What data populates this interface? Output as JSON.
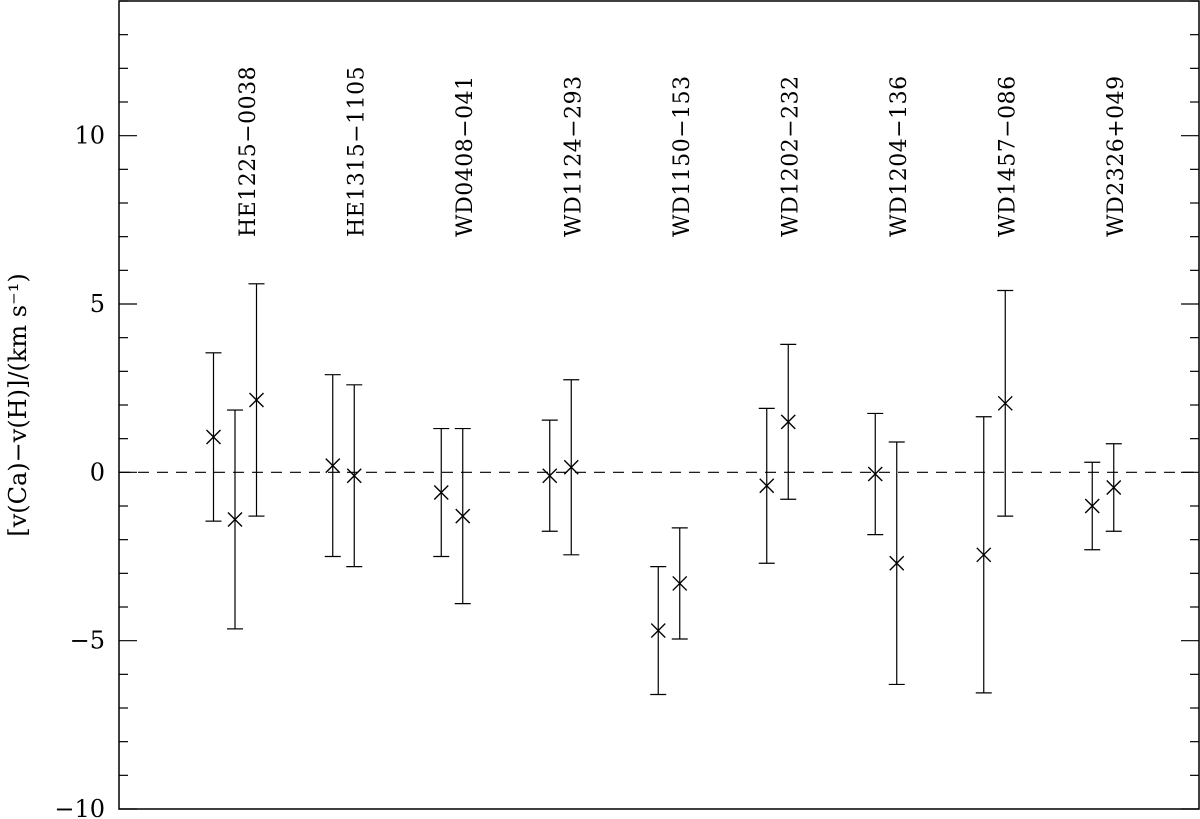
{
  "chart_data": {
    "type": "scatter",
    "ylabel": "[v(Ca)−v(H)]/(km s⁻¹)",
    "xlabel": "",
    "ylim": [
      -10,
      14
    ],
    "y_ticks": [
      {
        "value": 10,
        "label": "10"
      },
      {
        "value": 5,
        "label": "5"
      },
      {
        "value": 0,
        "label": "0"
      },
      {
        "value": -5,
        "label": "−5"
      },
      {
        "value": -10,
        "label": "−10"
      }
    ],
    "reference_line": {
      "y": 0,
      "style": "dashed"
    },
    "groups": [
      {
        "label": "HE1225−0038",
        "points": [
          {
            "y": 1.05,
            "err": 2.5
          },
          {
            "y": -1.4,
            "err": 3.25
          },
          {
            "y": 2.15,
            "err": 3.45
          }
        ]
      },
      {
        "label": "HE1315−1105",
        "points": [
          {
            "y": 0.2,
            "err": 2.7
          },
          {
            "y": -0.1,
            "err": 2.7
          }
        ]
      },
      {
        "label": "WD0408−041",
        "points": [
          {
            "y": -0.6,
            "err": 1.9
          },
          {
            "y": -1.3,
            "err": 2.6
          }
        ]
      },
      {
        "label": "WD1124−293",
        "points": [
          {
            "y": -0.1,
            "err": 1.65
          },
          {
            "y": 0.15,
            "err": 2.6
          }
        ]
      },
      {
        "label": "WD1150−153",
        "points": [
          {
            "y": -4.7,
            "err": 1.9
          },
          {
            "y": -3.3,
            "err": 1.65
          }
        ]
      },
      {
        "label": "WD1202−232",
        "points": [
          {
            "y": -0.4,
            "err": 2.3
          },
          {
            "y": 1.5,
            "err": 2.3
          }
        ]
      },
      {
        "label": "WD1204−136",
        "points": [
          {
            "y": -0.05,
            "err": 1.8
          },
          {
            "y": -2.7,
            "err": 3.6
          }
        ]
      },
      {
        "label": "WD1457−086",
        "points": [
          {
            "y": -2.45,
            "err": 4.1
          },
          {
            "y": 2.05,
            "err": 3.35
          }
        ]
      },
      {
        "label": "WD2326+049",
        "points": [
          {
            "y": -1.0,
            "err": 1.3
          },
          {
            "y": -0.45,
            "err": 1.3
          }
        ]
      }
    ],
    "grid": false,
    "legend": "none"
  }
}
